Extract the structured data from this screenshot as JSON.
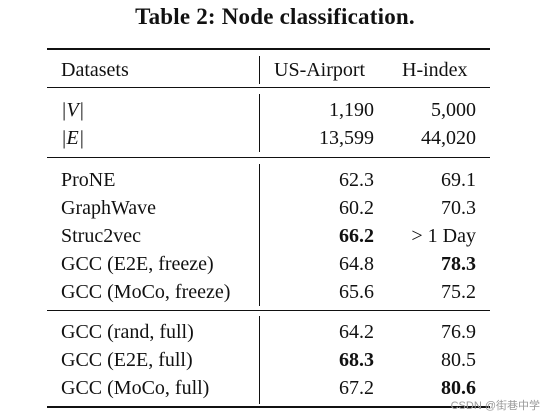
{
  "caption": "Table 2: Node classification.",
  "table": {
    "header": [
      "Datasets",
      "US-Airport",
      "H-index"
    ],
    "stats": [
      {
        "name": "|V|",
        "us_airport": "1,190",
        "h_index": "5,000"
      },
      {
        "name": "|E|",
        "us_airport": "13,599",
        "h_index": "44,020"
      }
    ],
    "baselines": [
      {
        "name": "ProNE",
        "us_airport": "62.3",
        "h_index": "69.1"
      },
      {
        "name": "GraphWave",
        "us_airport": "60.2",
        "h_index": "70.3"
      },
      {
        "name": "Struc2vec",
        "us_airport": "66.2",
        "h_index": "> 1 Day"
      },
      {
        "name": "GCC (E2E, freeze)",
        "us_airport": "64.8",
        "h_index": "78.3"
      },
      {
        "name": "GCC (MoCo, freeze)",
        "us_airport": "65.6",
        "h_index": "75.2"
      }
    ],
    "full": [
      {
        "name": "GCC (rand, full)",
        "us_airport": "64.2",
        "h_index": "76.9"
      },
      {
        "name": "GCC (E2E, full)",
        "us_airport": "68.3",
        "h_index": "80.5"
      },
      {
        "name": "GCC (MoCo, full)",
        "us_airport": "67.2",
        "h_index": "80.6"
      }
    ]
  },
  "watermark": "CSDN @街巷中学"
}
